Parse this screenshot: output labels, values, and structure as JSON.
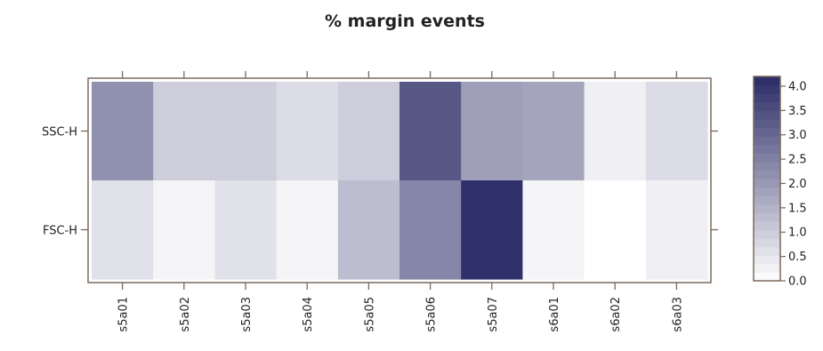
{
  "chart_data": {
    "type": "heatmap",
    "title": "% margin events",
    "xlabel": "",
    "ylabel": "",
    "x_categories": [
      "s5a01",
      "s5a02",
      "s5a03",
      "s5a04",
      "s5a05",
      "s5a06",
      "s5a07",
      "s6a01",
      "s6a02",
      "s6a03"
    ],
    "y_categories": [
      "SSC-H",
      "FSC-H"
    ],
    "values": [
      [
        2.2,
        1.0,
        1.0,
        0.7,
        1.0,
        3.3,
        1.9,
        1.8,
        0.3,
        0.7
      ],
      [
        0.6,
        0.2,
        0.6,
        0.2,
        1.3,
        2.4,
        4.1,
        0.2,
        0.0,
        0.3
      ]
    ],
    "colorbar": {
      "min": 0.0,
      "max": 4.2,
      "ticks": [
        0.0,
        0.5,
        1.0,
        1.5,
        2.0,
        2.5,
        3.0,
        3.5,
        4.0
      ],
      "tick_labels": [
        "0.0",
        "0.5",
        "1.0",
        "1.5",
        "2.0",
        "2.5",
        "3.0",
        "3.5",
        "4.0"
      ],
      "low_color": "#ffffff",
      "high_color": "#2b2b66"
    },
    "frame_color": "#7a6a5e",
    "grid": false,
    "legend": "right"
  }
}
